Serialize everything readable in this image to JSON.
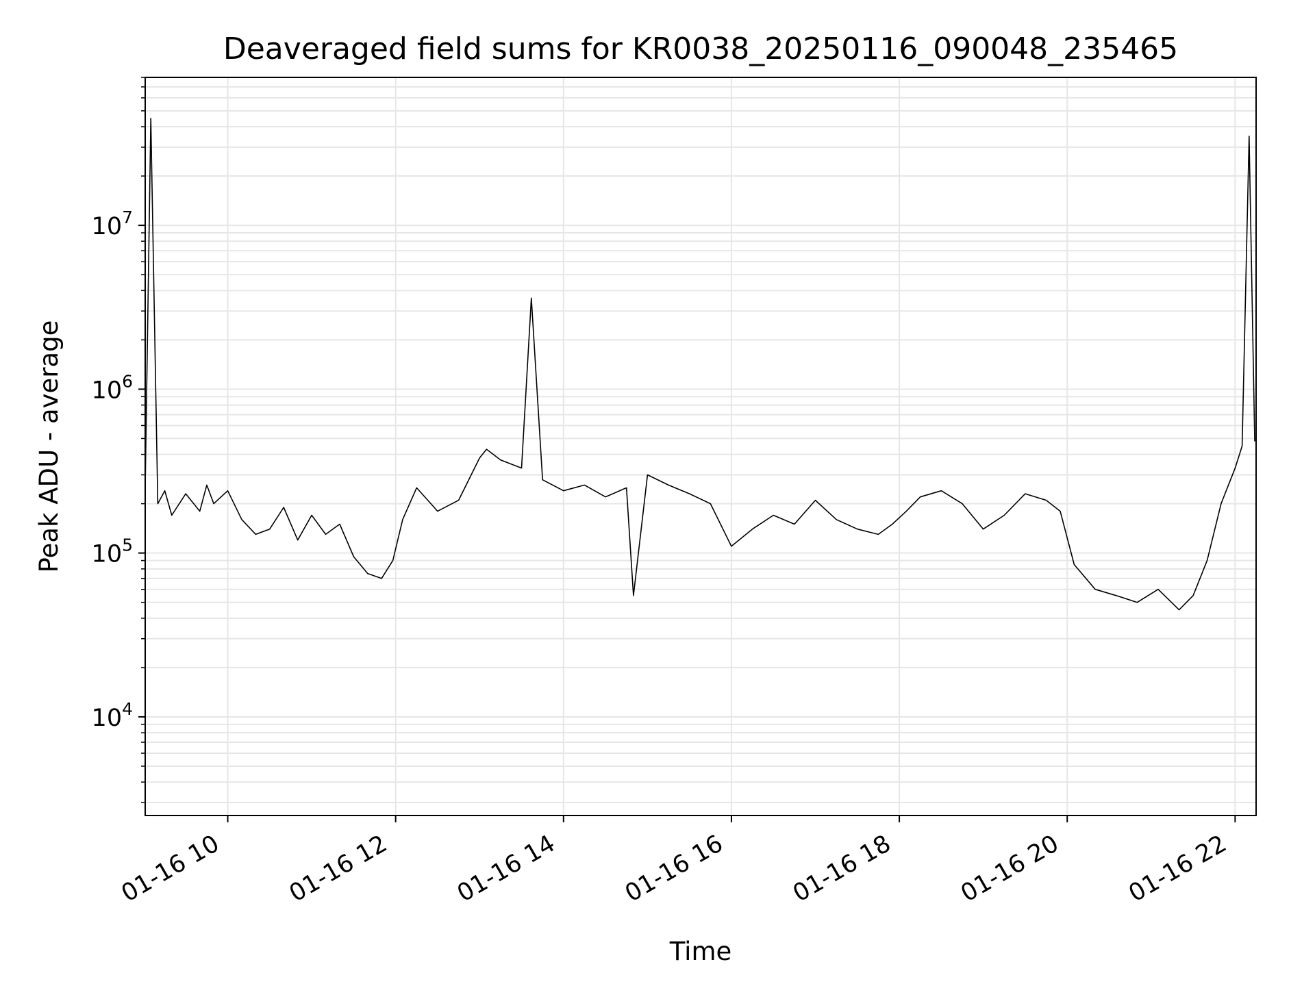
{
  "chart_data": {
    "type": "line",
    "title": "Deaveraged field sums for KR0038_20250116_090048_235465",
    "xlabel": "Time",
    "ylabel": "Peak ADU - average",
    "yscale": "log",
    "ylim": [
      2500,
      80000000
    ],
    "xlim": [
      "01-16 09:01",
      "01-16 22:15"
    ],
    "grid": true,
    "line_color": "#000000",
    "grid_color": "#e6e6e6",
    "x_ticks": [
      {
        "label": "01-16 10",
        "t": "01-16 10:00"
      },
      {
        "label": "01-16 12",
        "t": "01-16 12:00"
      },
      {
        "label": "01-16 14",
        "t": "01-16 14:00"
      },
      {
        "label": "01-16 16",
        "t": "01-16 16:00"
      },
      {
        "label": "01-16 18",
        "t": "01-16 18:00"
      },
      {
        "label": "01-16 20",
        "t": "01-16 20:00"
      },
      {
        "label": "01-16 22",
        "t": "01-16 22:00"
      }
    ],
    "y_ticks": [
      {
        "base": "10",
        "exp": "4",
        "value": 10000
      },
      {
        "base": "10",
        "exp": "5",
        "value": 100000
      },
      {
        "base": "10",
        "exp": "6",
        "value": 1000000
      },
      {
        "base": "10",
        "exp": "7",
        "value": 10000000
      }
    ],
    "series": [
      {
        "x": [
          "01-16 09:01",
          "01-16 09:05",
          "01-16 09:10",
          "01-16 09:15",
          "01-16 09:20",
          "01-16 09:30",
          "01-16 09:40",
          "01-16 09:45",
          "01-16 09:50",
          "01-16 10:00",
          "01-16 10:10",
          "01-16 10:20",
          "01-16 10:30",
          "01-16 10:40",
          "01-16 10:50",
          "01-16 11:00",
          "01-16 11:10",
          "01-16 11:20",
          "01-16 11:30",
          "01-16 11:40",
          "01-16 11:50",
          "01-16 11:58",
          "01-16 12:05",
          "01-16 12:15",
          "01-16 12:30",
          "01-16 12:45",
          "01-16 13:00",
          "01-16 13:05",
          "01-16 13:15",
          "01-16 13:30",
          "01-16 13:37",
          "01-16 13:45",
          "01-16 14:00",
          "01-16 14:15",
          "01-16 14:30",
          "01-16 14:45",
          "01-16 14:50",
          "01-16 15:00",
          "01-16 15:15",
          "01-16 15:30",
          "01-16 15:45",
          "01-16 16:00",
          "01-16 16:15",
          "01-16 16:30",
          "01-16 16:45",
          "01-16 17:00",
          "01-16 17:15",
          "01-16 17:30",
          "01-16 17:45",
          "01-16 17:55",
          "01-16 18:05",
          "01-16 18:15",
          "01-16 18:30",
          "01-16 18:45",
          "01-16 19:00",
          "01-16 19:15",
          "01-16 19:30",
          "01-16 19:45",
          "01-16 19:55",
          "01-16 20:05",
          "01-16 20:20",
          "01-16 20:35",
          "01-16 20:50",
          "01-16 21:05",
          "01-16 21:20",
          "01-16 21:30",
          "01-16 21:40",
          "01-16 21:50",
          "01-16 22:00",
          "01-16 22:05",
          "01-16 22:10",
          "01-16 22:14"
        ],
        "y": [
          250000,
          45000000,
          200000,
          240000,
          170000,
          230000,
          180000,
          260000,
          200000,
          240000,
          160000,
          130000,
          140000,
          190000,
          120000,
          170000,
          130000,
          150000,
          95000,
          75000,
          70000,
          90000,
          160000,
          250000,
          180000,
          210000,
          380000,
          430000,
          370000,
          330000,
          3600000,
          280000,
          240000,
          260000,
          220000,
          250000,
          55000,
          300000,
          260000,
          230000,
          200000,
          110000,
          140000,
          170000,
          150000,
          210000,
          160000,
          140000,
          130000,
          150000,
          180000,
          220000,
          240000,
          200000,
          140000,
          170000,
          230000,
          210000,
          180000,
          85000,
          60000,
          55000,
          50000,
          60000,
          45000,
          55000,
          90000,
          200000,
          330000,
          450000,
          35000000,
          480000
        ]
      }
    ]
  }
}
